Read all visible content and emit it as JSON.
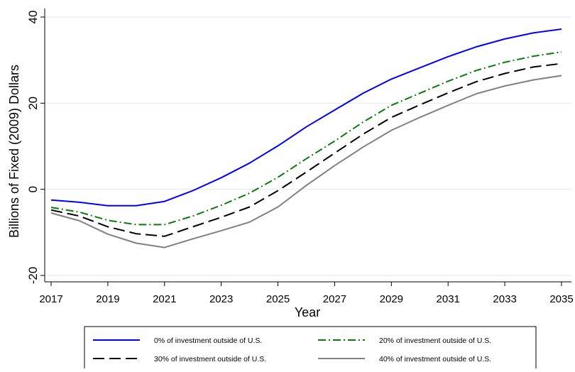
{
  "chart_data": {
    "type": "line",
    "title": "",
    "xlabel": "Year",
    "ylabel": "Billions of Fixed (2009) Dollars",
    "xlim": [
      2017,
      2035
    ],
    "ylim": [
      -20,
      40
    ],
    "x_ticks": [
      2017,
      2019,
      2021,
      2023,
      2025,
      2027,
      2029,
      2031,
      2033,
      2035
    ],
    "y_ticks": [
      -20,
      0,
      20,
      40
    ],
    "grid": "horizontal",
    "legend_position": "bottom",
    "x": [
      2017,
      2018,
      2019,
      2020,
      2021,
      2022,
      2023,
      2024,
      2025,
      2026,
      2027,
      2028,
      2029,
      2030,
      2031,
      2032,
      2033,
      2034,
      2035
    ],
    "series": [
      {
        "name": "0% of investment outside of U.S.",
        "color": "#0000ff",
        "dash": "solid",
        "values": [
          -2.5,
          -3.0,
          -3.8,
          -3.8,
          -2.8,
          -0.3,
          2.7,
          6.1,
          10.1,
          14.5,
          18.4,
          22.3,
          25.6,
          28.2,
          30.8,
          33.1,
          34.9,
          36.3,
          37.2
        ]
      },
      {
        "name": "20% of investment outside of U.S.",
        "color": "#0a7a0a",
        "dash": "dashdot",
        "values": [
          -4.2,
          -5.3,
          -7.2,
          -8.2,
          -8.2,
          -6.2,
          -3.7,
          -0.9,
          2.8,
          7.1,
          11.2,
          15.6,
          19.5,
          22.3,
          25.1,
          27.6,
          29.5,
          30.9,
          31.9
        ]
      },
      {
        "name": "30% of investment outside of U.S.",
        "color": "#000000",
        "dash": "longdash",
        "values": [
          -4.8,
          -6.2,
          -8.7,
          -10.3,
          -10.9,
          -8.7,
          -6.5,
          -4.1,
          -0.3,
          4.0,
          8.4,
          12.8,
          16.7,
          19.6,
          22.4,
          25.0,
          26.9,
          28.4,
          29.2
        ]
      },
      {
        "name": "40% of investment outside of U.S.",
        "color": "#808080",
        "dash": "solid",
        "values": [
          -5.5,
          -7.3,
          -10.4,
          -12.5,
          -13.5,
          -11.5,
          -9.6,
          -7.6,
          -4.1,
          0.9,
          5.5,
          9.8,
          13.7,
          16.7,
          19.5,
          22.2,
          24.0,
          25.4,
          26.4
        ]
      }
    ]
  }
}
